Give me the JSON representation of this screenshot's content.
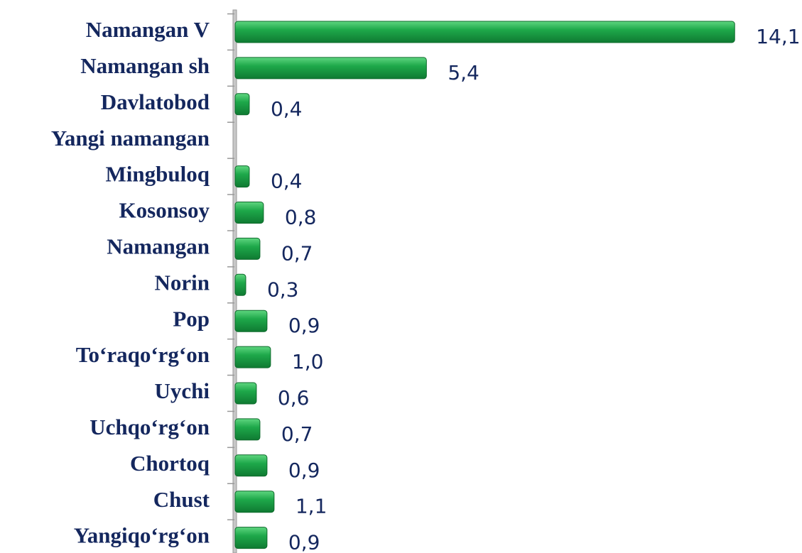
{
  "chart_data": {
    "type": "hbar",
    "categories": [
      "Namangan V",
      "Namangan sh",
      "Davlatobod",
      "Yangi namangan",
      "Mingbuloq",
      "Kosonsoy",
      "Namangan",
      "Norin",
      "Pop",
      "To‘raqo‘rg‘on",
      "Uychi",
      "Uchqo‘rg‘on",
      "Chortoq",
      "Chust",
      "Yangiqo‘rg‘on"
    ],
    "values": [
      14.1,
      5.4,
      0.4,
      null,
      0.4,
      0.8,
      0.7,
      0.3,
      0.9,
      1.0,
      0.6,
      0.7,
      0.9,
      1.1,
      0.9
    ],
    "value_labels": [
      "14,1",
      "5,4",
      "0,4",
      null,
      "0,4",
      "0,8",
      "0,7",
      "0,3",
      "0,9",
      "1,0",
      "0,6",
      "0,7",
      "0,9",
      "1,1",
      "0,9"
    ],
    "color": "#1ea84a",
    "xlim": [
      0,
      16
    ]
  }
}
